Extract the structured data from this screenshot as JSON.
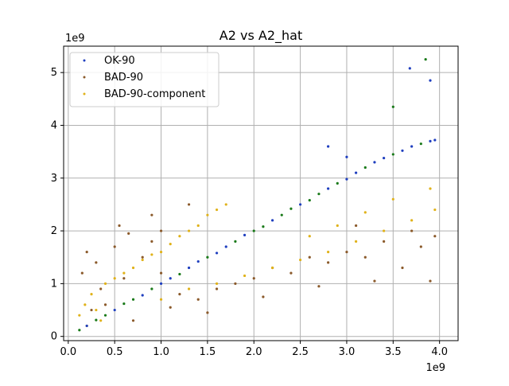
{
  "chart_data": {
    "type": "scatter",
    "title": "A2 vs A2_hat",
    "xlabel": "",
    "ylabel": "",
    "x_offset_label": "1e9",
    "y_offset_label": "1e9",
    "xlim": [
      -0.05,
      4.2
    ],
    "ylim": [
      -0.08,
      5.5
    ],
    "x_ticks": [
      0.0,
      0.5,
      1.0,
      1.5,
      2.0,
      2.5,
      3.0,
      3.5,
      4.0
    ],
    "x_tick_labels": [
      "0.0",
      "0.5",
      "1.0",
      "1.5",
      "2.0",
      "2.5",
      "3.0",
      "3.5",
      "4.0"
    ],
    "y_ticks": [
      0,
      1,
      2,
      3,
      4,
      5
    ],
    "y_tick_labels": [
      "0",
      "1",
      "2",
      "3",
      "4",
      "5"
    ],
    "grid": true,
    "legend_position": "upper-left",
    "series": [
      {
        "name": "OK-90",
        "color": "#1f3fbf",
        "band_color": "#1a7a1a",
        "points": [
          [
            0.12,
            0.12
          ],
          [
            0.2,
            0.2
          ],
          [
            0.3,
            0.31
          ],
          [
            0.4,
            0.4
          ],
          [
            0.5,
            0.5
          ],
          [
            0.6,
            0.62
          ],
          [
            0.7,
            0.7
          ],
          [
            0.8,
            0.78
          ],
          [
            0.9,
            0.9
          ],
          [
            1.0,
            1.0
          ],
          [
            1.1,
            1.1
          ],
          [
            1.2,
            1.18
          ],
          [
            1.3,
            1.3
          ],
          [
            1.4,
            1.42
          ],
          [
            1.5,
            1.5
          ],
          [
            1.6,
            1.58
          ],
          [
            1.7,
            1.7
          ],
          [
            1.8,
            1.8
          ],
          [
            1.9,
            1.92
          ],
          [
            2.0,
            2.0
          ],
          [
            2.1,
            2.08
          ],
          [
            2.2,
            2.2
          ],
          [
            2.3,
            2.3
          ],
          [
            2.4,
            2.42
          ],
          [
            2.5,
            2.5
          ],
          [
            2.6,
            2.58
          ],
          [
            2.7,
            2.7
          ],
          [
            2.8,
            2.8
          ],
          [
            2.9,
            2.9
          ],
          [
            3.0,
            2.98
          ],
          [
            3.1,
            3.1
          ],
          [
            3.2,
            3.2
          ],
          [
            3.3,
            3.3
          ],
          [
            3.4,
            3.38
          ],
          [
            3.5,
            3.45
          ],
          [
            3.6,
            3.52
          ],
          [
            3.7,
            3.6
          ],
          [
            3.8,
            3.65
          ],
          [
            3.9,
            3.7
          ],
          [
            3.95,
            3.72
          ],
          [
            2.8,
            3.6
          ],
          [
            3.0,
            3.4
          ],
          [
            3.85,
            5.25
          ],
          [
            3.68,
            5.08
          ],
          [
            3.5,
            4.35
          ],
          [
            3.9,
            4.85
          ]
        ]
      },
      {
        "name": "BAD-90",
        "color": "#8b5a2b",
        "points": [
          [
            0.15,
            1.2
          ],
          [
            0.2,
            1.6
          ],
          [
            0.3,
            1.4
          ],
          [
            0.35,
            0.9
          ],
          [
            0.5,
            1.7
          ],
          [
            0.6,
            1.1
          ],
          [
            0.8,
            1.5
          ],
          [
            0.9,
            1.8
          ],
          [
            1.0,
            1.2
          ],
          [
            1.2,
            0.8
          ],
          [
            1.4,
            0.7
          ],
          [
            1.6,
            0.9
          ],
          [
            1.8,
            1.0
          ],
          [
            2.0,
            1.1
          ],
          [
            2.2,
            1.3
          ],
          [
            2.4,
            1.2
          ],
          [
            2.6,
            1.5
          ],
          [
            2.8,
            1.4
          ],
          [
            3.0,
            1.6
          ],
          [
            3.2,
            1.5
          ],
          [
            3.4,
            1.8
          ],
          [
            3.6,
            1.3
          ],
          [
            3.8,
            1.7
          ],
          [
            3.95,
            1.9
          ],
          [
            0.25,
            0.5
          ],
          [
            0.4,
            0.6
          ],
          [
            0.7,
            0.3
          ],
          [
            1.1,
            0.55
          ],
          [
            1.5,
            0.45
          ],
          [
            2.1,
            0.75
          ],
          [
            2.7,
            0.95
          ],
          [
            3.3,
            1.05
          ],
          [
            3.9,
            1.05
          ],
          [
            0.55,
            2.1
          ],
          [
            0.9,
            2.3
          ],
          [
            1.3,
            2.5
          ],
          [
            1.0,
            2.0
          ],
          [
            0.65,
            1.95
          ],
          [
            3.1,
            2.1
          ],
          [
            3.7,
            2.0
          ]
        ]
      },
      {
        "name": "BAD-90-component",
        "color": "#e0b21a",
        "points": [
          [
            0.12,
            0.4
          ],
          [
            0.18,
            0.6
          ],
          [
            0.25,
            0.8
          ],
          [
            0.3,
            0.5
          ],
          [
            0.4,
            1.0
          ],
          [
            0.5,
            1.1
          ],
          [
            0.6,
            1.2
          ],
          [
            0.7,
            1.3
          ],
          [
            0.8,
            1.45
          ],
          [
            0.9,
            1.55
          ],
          [
            1.0,
            1.6
          ],
          [
            1.1,
            1.75
          ],
          [
            1.2,
            1.9
          ],
          [
            1.3,
            2.0
          ],
          [
            1.4,
            2.1
          ],
          [
            1.5,
            2.3
          ],
          [
            1.6,
            2.4
          ],
          [
            1.7,
            2.5
          ],
          [
            1.0,
            0.7
          ],
          [
            1.3,
            0.9
          ],
          [
            1.6,
            1.0
          ],
          [
            1.9,
            1.15
          ],
          [
            2.2,
            1.3
          ],
          [
            2.5,
            1.45
          ],
          [
            2.8,
            1.6
          ],
          [
            3.1,
            1.8
          ],
          [
            3.4,
            2.0
          ],
          [
            3.7,
            2.2
          ],
          [
            3.95,
            2.4
          ],
          [
            3.9,
            2.8
          ],
          [
            3.5,
            2.6
          ],
          [
            3.2,
            2.35
          ],
          [
            2.9,
            2.1
          ],
          [
            2.6,
            1.9
          ],
          [
            0.2,
            0.2
          ],
          [
            0.35,
            0.3
          ]
        ]
      }
    ]
  }
}
